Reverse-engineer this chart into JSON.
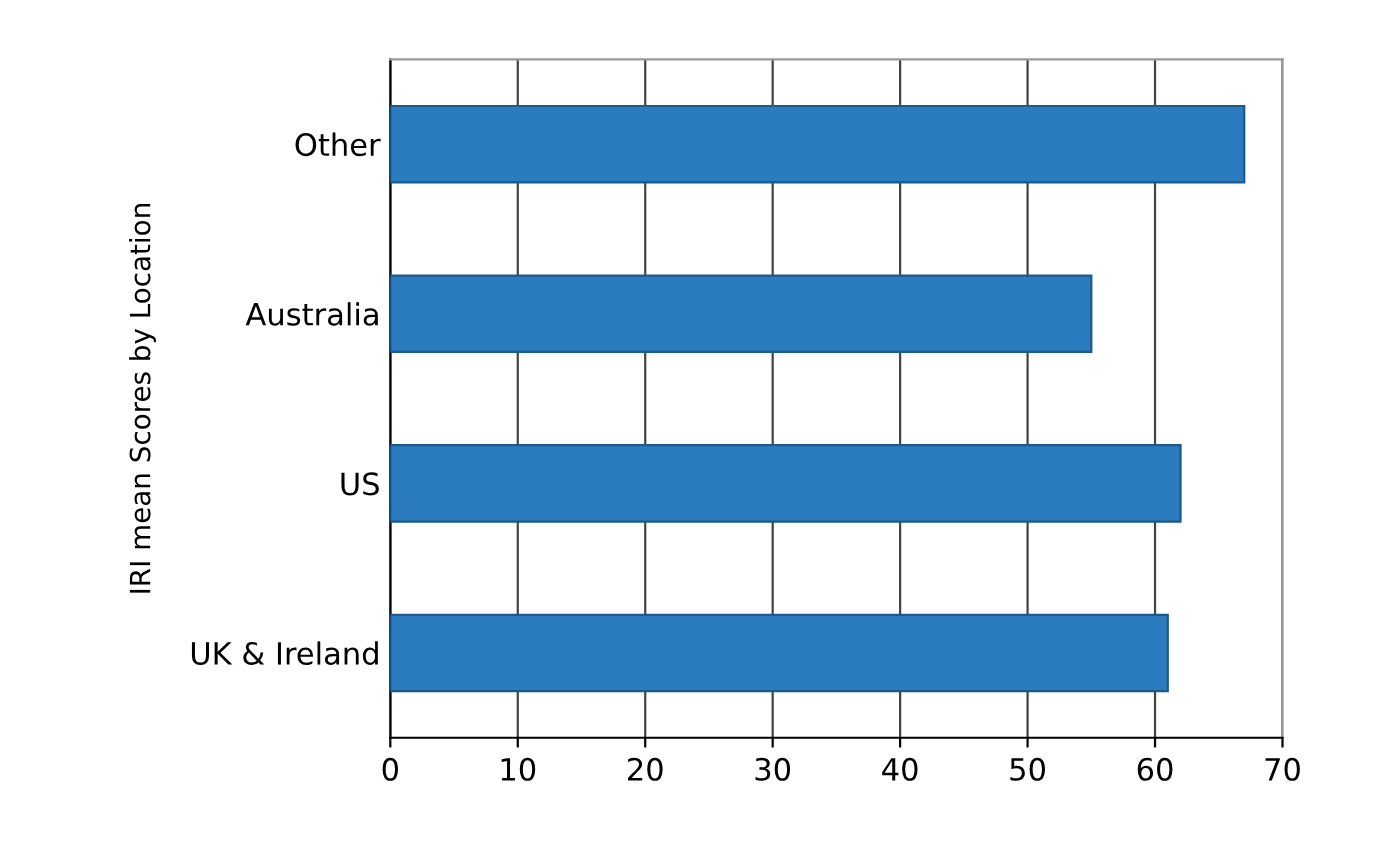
{
  "chart_data": {
    "type": "bar",
    "orientation": "horizontal",
    "ylabel": "IRI mean Scores by Location",
    "categories": [
      "Other",
      "Australia",
      "US",
      "UK & Ireland"
    ],
    "values": [
      67,
      55,
      62,
      61
    ],
    "color": "#2b7bbf",
    "xlim": [
      0,
      70
    ],
    "xticks": [
      0,
      10,
      20,
      30,
      40,
      50,
      60,
      70
    ],
    "grid": "x"
  }
}
